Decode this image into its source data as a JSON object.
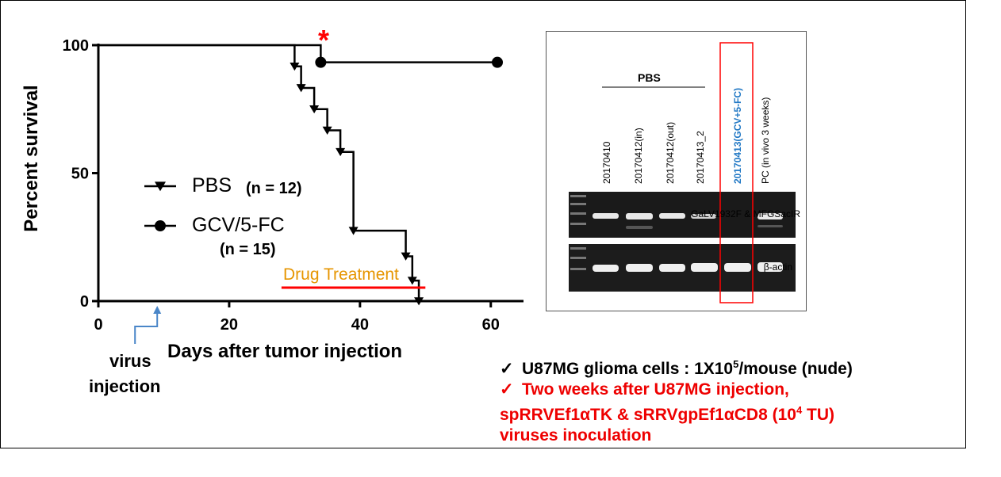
{
  "chart_data": {
    "type": "line",
    "subtype": "kaplan-meier survival",
    "xlabel": "Days after tumor injection",
    "ylabel": "Percent survival",
    "xlim": [
      0,
      65
    ],
    "ylim": [
      0,
      100
    ],
    "xticks": [
      "0",
      "20",
      "40",
      "60"
    ],
    "yticks": [
      "0",
      "50",
      "100"
    ],
    "grid": false,
    "legend_position": "center-left",
    "series": [
      {
        "name": "PBS",
        "n_label": "(n = 12)",
        "marker": "triangle-down",
        "steps": [
          [
            0,
            100
          ],
          [
            30,
            100
          ],
          [
            30,
            91.7
          ],
          [
            31,
            91.7
          ],
          [
            31,
            83.3
          ],
          [
            33,
            83.3
          ],
          [
            33,
            75
          ],
          [
            35,
            75
          ],
          [
            35,
            66.7
          ],
          [
            37,
            66.7
          ],
          [
            37,
            58.3
          ],
          [
            39,
            58.3
          ],
          [
            39,
            27.5
          ],
          [
            47,
            27.5
          ],
          [
            47,
            17.5
          ],
          [
            48,
            17.5
          ],
          [
            48,
            8
          ],
          [
            49,
            8
          ],
          [
            49,
            0
          ]
        ],
        "markers": [
          [
            30,
            91.7
          ],
          [
            31,
            83.3
          ],
          [
            33,
            75
          ],
          [
            35,
            66.7
          ],
          [
            37,
            58.3
          ],
          [
            39,
            27.5
          ],
          [
            47,
            17.5
          ],
          [
            48,
            8
          ],
          [
            49,
            0
          ]
        ]
      },
      {
        "name": "GCV/5-FC",
        "n_label": "(n = 15)",
        "marker": "circle",
        "steps": [
          [
            0,
            100
          ],
          [
            34,
            100
          ],
          [
            34,
            93.3
          ],
          [
            61,
            93.3
          ]
        ],
        "markers": [
          [
            34,
            93.3
          ],
          [
            61,
            93.3
          ]
        ]
      }
    ],
    "annotations": {
      "significance": "*",
      "treatment_label": "Drug Treatment",
      "treatment_range": [
        28,
        50
      ],
      "virus_label_line1": "virus",
      "virus_label_line2": "injection",
      "virus_day": 9
    }
  },
  "colors": {
    "significance": "#ff0000",
    "treatment_line": "#ff0000",
    "treatment_text": "#e69500",
    "virus_arrow": "#4a86c8",
    "bullet_black": "#000000",
    "bullet_red": "#ee0000",
    "gel_box": "#ff0000",
    "highlight_lane_label": "#1f77c4"
  },
  "gel": {
    "group_label": "PBS",
    "lanes": [
      "20170410",
      "20170412(in)",
      "20170412(out)",
      "20170413_2",
      "20170413(GCV+5-FC)",
      "PC (in vivo 3 weeks)"
    ],
    "band_label_top": "GaLV1932F & MFGSacIR",
    "band_label_bottom": "β-actin"
  },
  "bullets": {
    "check": "✓",
    "line1_main": "U87MG glioma cells : 1X10",
    "line1_sup": "5",
    "line1_end": "/mouse (nude)",
    "line2_a": "Two weeks after U87MG injection,",
    "line2_b_pre": "spRRVEf1αTK & sRRVgpEf1αCD8 (10",
    "line2_b_sup": "4",
    "line2_b_post": " TU)",
    "line2_c": "viruses inoculation"
  }
}
